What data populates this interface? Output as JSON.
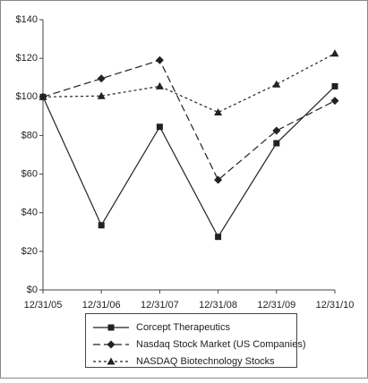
{
  "chart_data": {
    "type": "line",
    "categories": [
      "12/31/05",
      "12/31/06",
      "12/31/07",
      "12/31/08",
      "12/31/09",
      "12/31/10"
    ],
    "series": [
      {
        "name": "Corcept Therapeutics",
        "color": "#222222",
        "marker": "square",
        "dash": "solid",
        "values": [
          100,
          33.5,
          84.5,
          27.5,
          76,
          105.5
        ]
      },
      {
        "name": "Nasdaq Stock Market (US Companies)",
        "color": "#222222",
        "marker": "diamond",
        "dash": "long",
        "values": [
          100,
          109.5,
          119,
          57,
          82.5,
          98
        ]
      },
      {
        "name": "NASDAQ Biotechnology Stocks",
        "color": "#222222",
        "marker": "triangle",
        "dash": "short",
        "values": [
          100,
          100.5,
          105.5,
          92,
          106.5,
          122.5
        ]
      }
    ],
    "ylim": [
      0,
      140
    ],
    "yticks": [
      {
        "value": 0,
        "label": "$0"
      },
      {
        "value": 20,
        "label": "$20"
      },
      {
        "value": 40,
        "label": "$40"
      },
      {
        "value": 60,
        "label": "$60"
      },
      {
        "value": 80,
        "label": "$80"
      },
      {
        "value": 100,
        "label": "$100"
      },
      {
        "value": 120,
        "label": "$120"
      },
      {
        "value": 140,
        "label": "$140"
      }
    ],
    "grid": false
  }
}
